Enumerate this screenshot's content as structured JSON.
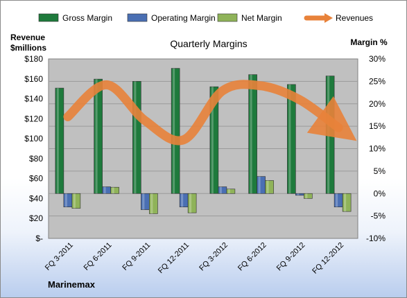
{
  "chart_data": {
    "type": "bar",
    "title": "Quarterly Margins",
    "company": "Marinemax",
    "left_axis_label_line1": "Revenue",
    "left_axis_label_line2": "$millions",
    "right_axis_label": "Margin %",
    "categories": [
      "FQ 3-2011",
      "FQ 6-2011",
      "FQ 9-2011",
      "FQ 12-2011",
      "FQ 3-2012",
      "FQ 6-2012",
      "FQ 9-2012",
      "FQ 12-2012"
    ],
    "series": [
      {
        "name": "Gross Margin",
        "axis": "right",
        "color": "#1e7a3c",
        "values": [
          23.5,
          25.5,
          25.0,
          27.9,
          23.8,
          26.5,
          24.3,
          26.2
        ]
      },
      {
        "name": "Operating Margin",
        "axis": "right",
        "color": "#4a6fb3",
        "values": [
          -3.0,
          1.5,
          -3.6,
          -3.0,
          1.5,
          3.8,
          -0.4,
          -3.0
        ]
      },
      {
        "name": "Net Margin",
        "axis": "right",
        "color": "#8fb359",
        "values": [
          -3.3,
          1.4,
          -4.5,
          -4.3,
          1.0,
          2.9,
          -1.1,
          -4.0
        ]
      },
      {
        "name": "Revenues",
        "axis": "left",
        "color": "#e8823a",
        "values": [
          122,
          154,
          118,
          99,
          148,
          153,
          139,
          111
        ]
      }
    ],
    "left_axis": {
      "min": 0,
      "max": 180,
      "step": 20,
      "tick_labels": [
        "$-",
        "$20",
        "$40",
        "$60",
        "$80",
        "$100",
        "$120",
        "$140",
        "$160",
        "$180"
      ]
    },
    "right_axis": {
      "min": -10,
      "max": 30,
      "step": 5,
      "tick_labels": [
        "-10%",
        "-5%",
        "0%",
        "5%",
        "10%",
        "15%",
        "20%",
        "25%",
        "30%"
      ]
    },
    "grid": true,
    "legend_position": "top"
  }
}
